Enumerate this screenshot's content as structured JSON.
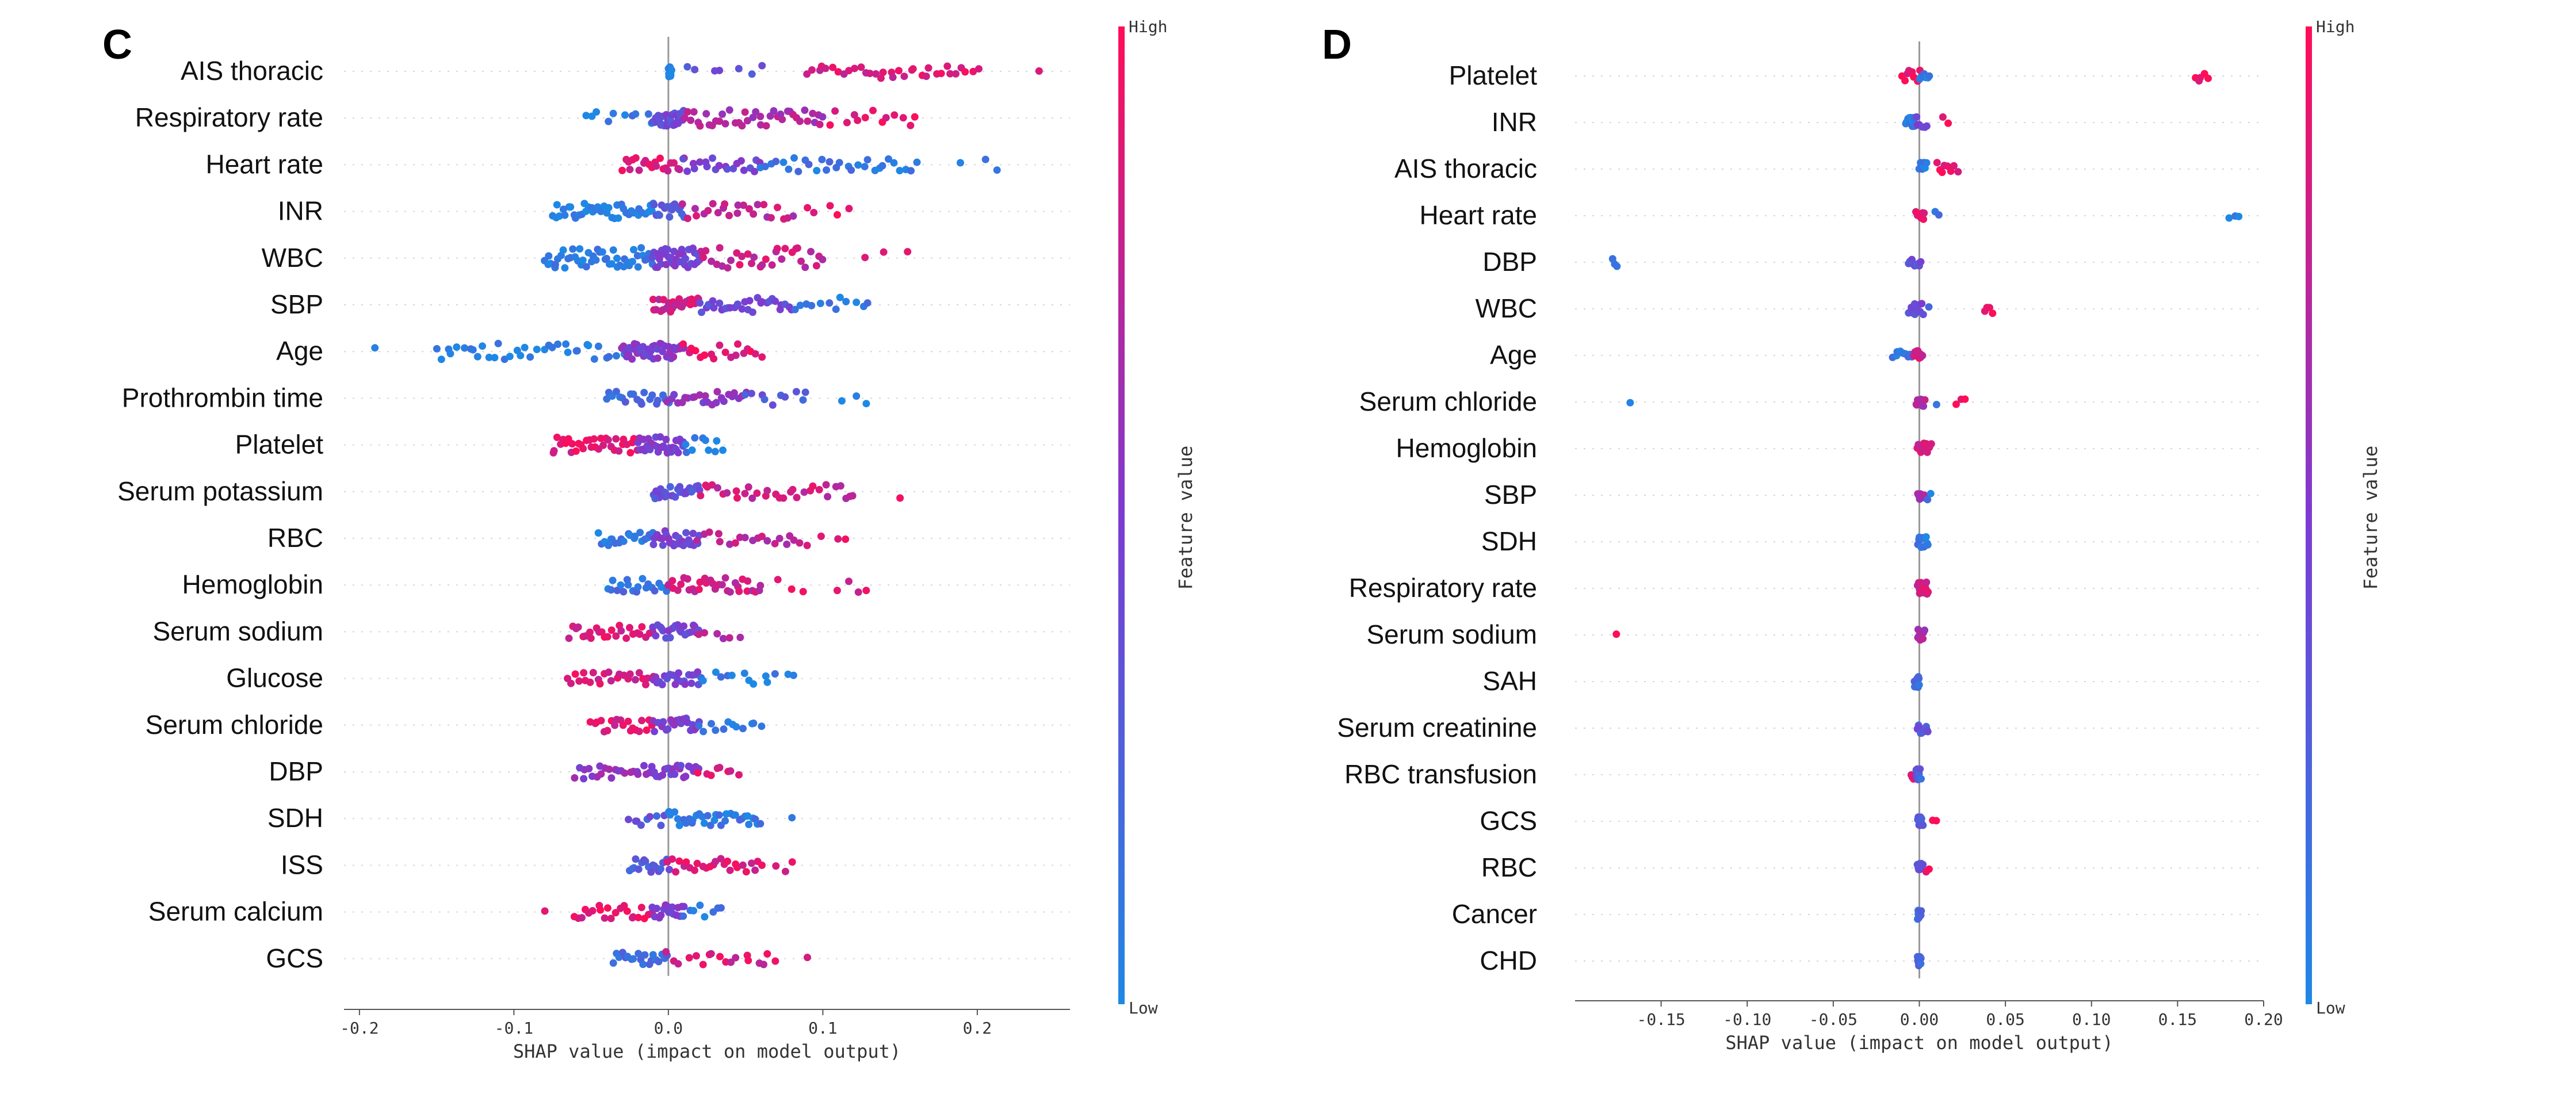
{
  "chart_data": [
    {
      "type": "scatter",
      "subtype": "shap_beeswarm",
      "panel": "C",
      "title": "",
      "xlabel": "SHAP value (impact on model output)",
      "ylabel": "",
      "xlim": [
        -0.21,
        0.26
      ],
      "xticks": [
        "-0.2",
        "-0.1",
        "0.0",
        "0.1",
        "0.2"
      ],
      "colorbar": {
        "label": "Feature value",
        "high": "High",
        "low": "Low"
      },
      "features": [
        {
          "name": "AIS thoracic",
          "spread": 0.012,
          "segments": [
            [
              0.0,
              0.002,
              0.0,
              10
            ],
            [
              0.01,
              0.06,
              0.35,
              7
            ],
            [
              0.09,
              0.2,
              0.85,
              34
            ],
            [
              0.24,
              0.24,
              0.95,
              1
            ]
          ]
        },
        {
          "name": "Respiratory rate",
          "spread": 0.014,
          "segments": [
            [
              -0.055,
              -0.01,
              0.1,
              10
            ],
            [
              -0.01,
              0.01,
              0.4,
              30
            ],
            [
              0.01,
              0.1,
              0.7,
              40
            ],
            [
              0.1,
              0.16,
              0.9,
              14
            ]
          ]
        },
        {
          "name": "Heart rate",
          "spread": 0.012,
          "segments": [
            [
              -0.03,
              0.01,
              0.85,
              22
            ],
            [
              0.01,
              0.06,
              0.45,
              20
            ],
            [
              0.06,
              0.16,
              0.12,
              30
            ],
            [
              0.19,
              0.215,
              0.05,
              3
            ]
          ]
        },
        {
          "name": "INR",
          "spread": 0.014,
          "segments": [
            [
              -0.075,
              -0.01,
              0.05,
              40
            ],
            [
              -0.01,
              0.01,
              0.3,
              18
            ],
            [
              0.01,
              0.08,
              0.75,
              24
            ],
            [
              0.09,
              0.115,
              0.9,
              5
            ]
          ]
        },
        {
          "name": "WBC",
          "spread": 0.018,
          "segments": [
            [
              -0.08,
              -0.01,
              0.08,
              48
            ],
            [
              -0.01,
              0.02,
              0.45,
              36
            ],
            [
              0.02,
              0.1,
              0.8,
              32
            ],
            [
              0.13,
              0.155,
              0.9,
              3
            ]
          ]
        },
        {
          "name": "SBP",
          "spread": 0.013,
          "segments": [
            [
              -0.01,
              0.02,
              0.8,
              26
            ],
            [
              0.02,
              0.08,
              0.4,
              30
            ],
            [
              0.08,
              0.13,
              0.1,
              12
            ]
          ]
        },
        {
          "name": "Age",
          "spread": 0.014,
          "segments": [
            [
              -0.19,
              -0.19,
              0.03,
              1
            ],
            [
              -0.15,
              -0.03,
              0.05,
              36
            ],
            [
              -0.03,
              0.01,
              0.5,
              40
            ],
            [
              0.01,
              0.06,
              0.9,
              18
            ]
          ]
        },
        {
          "name": "Prothrombin time",
          "spread": 0.012,
          "segments": [
            [
              -0.04,
              0.0,
              0.2,
              20
            ],
            [
              0.0,
              0.05,
              0.55,
              24
            ],
            [
              0.05,
              0.09,
              0.3,
              10
            ],
            [
              0.11,
              0.13,
              0.05,
              3
            ]
          ]
        },
        {
          "name": "Platelet",
          "spread": 0.014,
          "segments": [
            [
              -0.075,
              -0.02,
              0.9,
              34
            ],
            [
              -0.02,
              0.01,
              0.5,
              34
            ],
            [
              0.01,
              0.035,
              0.08,
              10
            ]
          ]
        },
        {
          "name": "Serum potassium",
          "spread": 0.012,
          "segments": [
            [
              -0.01,
              0.02,
              0.35,
              26
            ],
            [
              0.02,
              0.12,
              0.8,
              32
            ],
            [
              0.15,
              0.15,
              0.9,
              1
            ]
          ]
        },
        {
          "name": "RBC",
          "spread": 0.013,
          "segments": [
            [
              -0.045,
              -0.01,
              0.1,
              20
            ],
            [
              -0.01,
              0.02,
              0.45,
              28
            ],
            [
              0.02,
              0.09,
              0.75,
              20
            ],
            [
              0.1,
              0.115,
              0.9,
              3
            ]
          ]
        },
        {
          "name": "Hemoglobin",
          "spread": 0.013,
          "segments": [
            [
              -0.04,
              0.0,
              0.15,
              20
            ],
            [
              0.0,
              0.06,
              0.8,
              32
            ],
            [
              0.07,
              0.085,
              0.9,
              3
            ],
            [
              0.11,
              0.13,
              0.9,
              4
            ]
          ]
        },
        {
          "name": "Serum sodium",
          "spread": 0.012,
          "segments": [
            [
              -0.065,
              -0.01,
              0.85,
              26
            ],
            [
              -0.01,
              0.02,
              0.45,
              22
            ],
            [
              0.02,
              0.045,
              0.7,
              6
            ]
          ]
        },
        {
          "name": "Glucose",
          "spread": 0.012,
          "segments": [
            [
              -0.065,
              -0.01,
              0.85,
              24
            ],
            [
              -0.01,
              0.02,
              0.45,
              22
            ],
            [
              0.02,
              0.08,
              0.08,
              14
            ]
          ]
        },
        {
          "name": "Serum chloride",
          "spread": 0.012,
          "segments": [
            [
              -0.05,
              -0.01,
              0.85,
              20
            ],
            [
              -0.01,
              0.02,
              0.5,
              22
            ],
            [
              0.02,
              0.06,
              0.08,
              12
            ]
          ]
        },
        {
          "name": "DBP",
          "spread": 0.012,
          "segments": [
            [
              -0.06,
              -0.01,
              0.55,
              24
            ],
            [
              -0.01,
              0.02,
              0.5,
              22
            ],
            [
              0.02,
              0.045,
              0.85,
              8
            ]
          ]
        },
        {
          "name": "SDH",
          "spread": 0.012,
          "segments": [
            [
              -0.025,
              0.0,
              0.3,
              10
            ],
            [
              0.0,
              0.06,
              0.1,
              34
            ],
            [
              0.08,
              0.08,
              0.05,
              1
            ]
          ]
        },
        {
          "name": "ISS",
          "spread": 0.012,
          "segments": [
            [
              -0.025,
              0.0,
              0.3,
              18
            ],
            [
              0.0,
              0.06,
              0.85,
              26
            ],
            [
              0.07,
              0.08,
              0.9,
              3
            ]
          ]
        },
        {
          "name": "Serum calcium",
          "spread": 0.012,
          "segments": [
            [
              -0.08,
              -0.08,
              0.9,
              1
            ],
            [
              -0.06,
              -0.01,
              0.9,
              22
            ],
            [
              -0.01,
              0.01,
              0.5,
              16
            ],
            [
              0.01,
              0.035,
              0.1,
              8
            ]
          ]
        },
        {
          "name": "GCS",
          "spread": 0.012,
          "segments": [
            [
              -0.035,
              0.0,
              0.2,
              20
            ],
            [
              0.0,
              0.07,
              0.85,
              18
            ],
            [
              0.09,
              0.09,
              0.9,
              1
            ]
          ]
        }
      ]
    },
    {
      "type": "scatter",
      "subtype": "shap_beeswarm",
      "panel": "D",
      "title": "",
      "xlabel": "SHAP value (impact on model output)",
      "ylabel": "",
      "xlim": [
        -0.2,
        0.2
      ],
      "xticks": [
        "-0.15",
        "-0.10",
        "-0.05",
        "0.00",
        "0.05",
        "0.10",
        "0.15",
        "0.20"
      ],
      "colorbar": {
        "label": "Feature value",
        "high": "High",
        "low": "Low"
      },
      "features": [
        {
          "name": "Platelet",
          "spread": 0.01,
          "segments": [
            [
              -0.01,
              0.0,
              0.95,
              8
            ],
            [
              0.0,
              0.006,
              0.1,
              8
            ],
            [
              0.16,
              0.168,
              0.95,
              5
            ]
          ]
        },
        {
          "name": "INR",
          "spread": 0.01,
          "segments": [
            [
              -0.008,
              -0.002,
              0.05,
              18
            ],
            [
              -0.002,
              0.004,
              0.5,
              6
            ],
            [
              0.013,
              0.016,
              0.95,
              2
            ]
          ]
        },
        {
          "name": "AIS thoracic",
          "spread": 0.012,
          "segments": [
            [
              0.0,
              0.004,
              0.1,
              8
            ],
            [
              0.01,
              0.022,
              0.9,
              8
            ]
          ]
        },
        {
          "name": "Heart rate",
          "spread": 0.008,
          "segments": [
            [
              -0.002,
              0.003,
              0.9,
              10
            ],
            [
              0.009,
              0.011,
              0.1,
              2
            ],
            [
              0.18,
              0.186,
              0.05,
              3
            ]
          ]
        },
        {
          "name": "DBP",
          "spread": 0.008,
          "segments": [
            [
              -0.178,
              -0.176,
              0.05,
              3
            ],
            [
              -0.006,
              0.001,
              0.35,
              10
            ]
          ]
        },
        {
          "name": "WBC",
          "spread": 0.01,
          "segments": [
            [
              -0.006,
              0.002,
              0.4,
              14
            ],
            [
              0.005,
              0.006,
              0.1,
              1
            ],
            [
              0.038,
              0.043,
              0.95,
              4
            ]
          ]
        },
        {
          "name": "Age",
          "spread": 0.008,
          "segments": [
            [
              -0.015,
              -0.004,
              0.1,
              10
            ],
            [
              -0.003,
              0.002,
              0.85,
              10
            ]
          ]
        },
        {
          "name": "Serum chloride",
          "spread": 0.008,
          "segments": [
            [
              -0.168,
              -0.168,
              0.05,
              1
            ],
            [
              -0.002,
              0.003,
              0.7,
              10
            ],
            [
              0.01,
              0.01,
              0.1,
              1
            ],
            [
              0.022,
              0.026,
              0.95,
              3
            ]
          ]
        },
        {
          "name": "Hemoglobin",
          "spread": 0.01,
          "segments": [
            [
              -0.001,
              0.007,
              0.85,
              12
            ]
          ]
        },
        {
          "name": "SBP",
          "spread": 0.008,
          "segments": [
            [
              -0.001,
              0.003,
              0.7,
              8
            ],
            [
              0.005,
              0.007,
              0.1,
              2
            ]
          ]
        },
        {
          "name": "SDH",
          "spread": 0.01,
          "segments": [
            [
              -0.001,
              0.005,
              0.1,
              12
            ]
          ]
        },
        {
          "name": "Respiratory rate",
          "spread": 0.012,
          "segments": [
            [
              -0.001,
              0.005,
              0.8,
              14
            ]
          ]
        },
        {
          "name": "Serum sodium",
          "spread": 0.01,
          "segments": [
            [
              -0.176,
              -0.176,
              0.95,
              1
            ],
            [
              -0.001,
              0.003,
              0.7,
              12
            ]
          ]
        },
        {
          "name": "SAH",
          "spread": 0.01,
          "segments": [
            [
              -0.003,
              0.0,
              0.2,
              12
            ]
          ]
        },
        {
          "name": "Serum creatinine",
          "spread": 0.01,
          "segments": [
            [
              -0.001,
              0.005,
              0.35,
              12
            ]
          ]
        },
        {
          "name": "RBC transfusion",
          "spread": 0.01,
          "segments": [
            [
              -0.005,
              -0.002,
              0.95,
              4
            ],
            [
              -0.002,
              0.001,
              0.25,
              8
            ]
          ]
        },
        {
          "name": "GCS",
          "spread": 0.008,
          "segments": [
            [
              -0.001,
              0.002,
              0.35,
              10
            ],
            [
              0.008,
              0.01,
              0.95,
              2
            ]
          ]
        },
        {
          "name": "RBC",
          "spread": 0.008,
          "segments": [
            [
              -0.001,
              0.002,
              0.3,
              10
            ],
            [
              0.004,
              0.006,
              0.95,
              2
            ]
          ]
        },
        {
          "name": "Cancer",
          "spread": 0.008,
          "segments": [
            [
              -0.001,
              0.001,
              0.2,
              10
            ]
          ]
        },
        {
          "name": "CHD",
          "spread": 0.008,
          "segments": [
            [
              -0.001,
              0.001,
              0.2,
              10
            ]
          ]
        }
      ]
    }
  ],
  "colors": {
    "low": "#1e88e5",
    "high": "#ff0d57",
    "axis": "#555555",
    "grid": "#d6d6d6"
  }
}
